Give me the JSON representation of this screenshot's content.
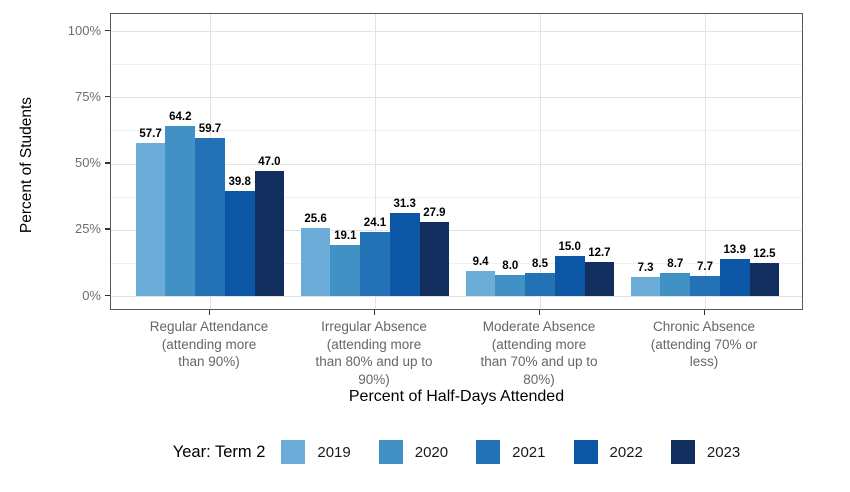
{
  "chart_data": {
    "type": "bar",
    "title": "",
    "xlabel": "Percent of Half-Days Attended",
    "ylabel": "Percent of Students",
    "ylim": [
      0,
      100
    ],
    "y_ticks": [
      {
        "value": 0,
        "label": "0%"
      },
      {
        "value": 25,
        "label": "25%"
      },
      {
        "value": 50,
        "label": "50%"
      },
      {
        "value": 75,
        "label": "75%"
      },
      {
        "value": 100,
        "label": "100%"
      }
    ],
    "y_minor_ticks": [
      12.5,
      37.5,
      62.5,
      87.5
    ],
    "grid": {
      "horizontal": "major+minor",
      "vertical": "major-at-category-centers"
    },
    "legend_title": "Year: Term 2",
    "legend_position": "bottom",
    "value_labels": true,
    "value_label_decimals": 1,
    "categories": [
      {
        "lines": [
          "Regular Attendance",
          "(attending more",
          "than 90%)"
        ]
      },
      {
        "lines": [
          "Irregular Absence",
          "(attending more",
          "than 80% and up to",
          "90%)"
        ]
      },
      {
        "lines": [
          "Moderate Absence",
          "(attending more",
          "than 70% and up to",
          "80%)"
        ]
      },
      {
        "lines": [
          "Chronic Absence",
          "(attending 70% or",
          "less)"
        ]
      }
    ],
    "series": [
      {
        "name": "2019",
        "color": "#6CACD8",
        "values": [
          57.7,
          25.6,
          9.4,
          7.3
        ]
      },
      {
        "name": "2020",
        "color": "#4191C5",
        "values": [
          64.2,
          19.1,
          8.0,
          8.7
        ]
      },
      {
        "name": "2021",
        "color": "#2272B5",
        "values": [
          59.7,
          24.1,
          8.5,
          7.7
        ]
      },
      {
        "name": "2022",
        "color": "#0C56A6",
        "values": [
          39.8,
          31.3,
          15.0,
          13.9
        ]
      },
      {
        "name": "2023",
        "color": "#112E5E",
        "values": [
          47.0,
          27.9,
          12.7,
          12.5
        ]
      }
    ]
  }
}
